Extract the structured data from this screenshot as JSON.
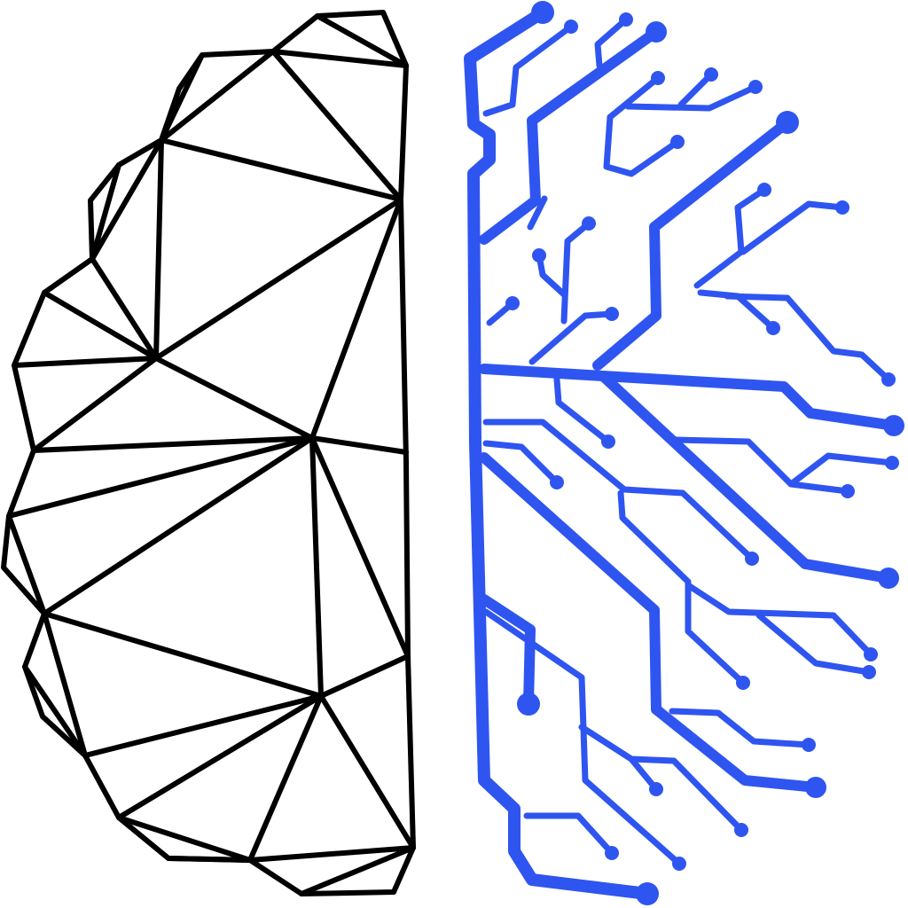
{
  "logo": {
    "icon": "brain-circuit-icon",
    "left_half": "geometric-brain-icon",
    "right_half": "circuit-brain-icon",
    "colors": {
      "background": "#ffffff",
      "brain_outline": "#000000",
      "circuit": "#2F55F0"
    }
  }
}
